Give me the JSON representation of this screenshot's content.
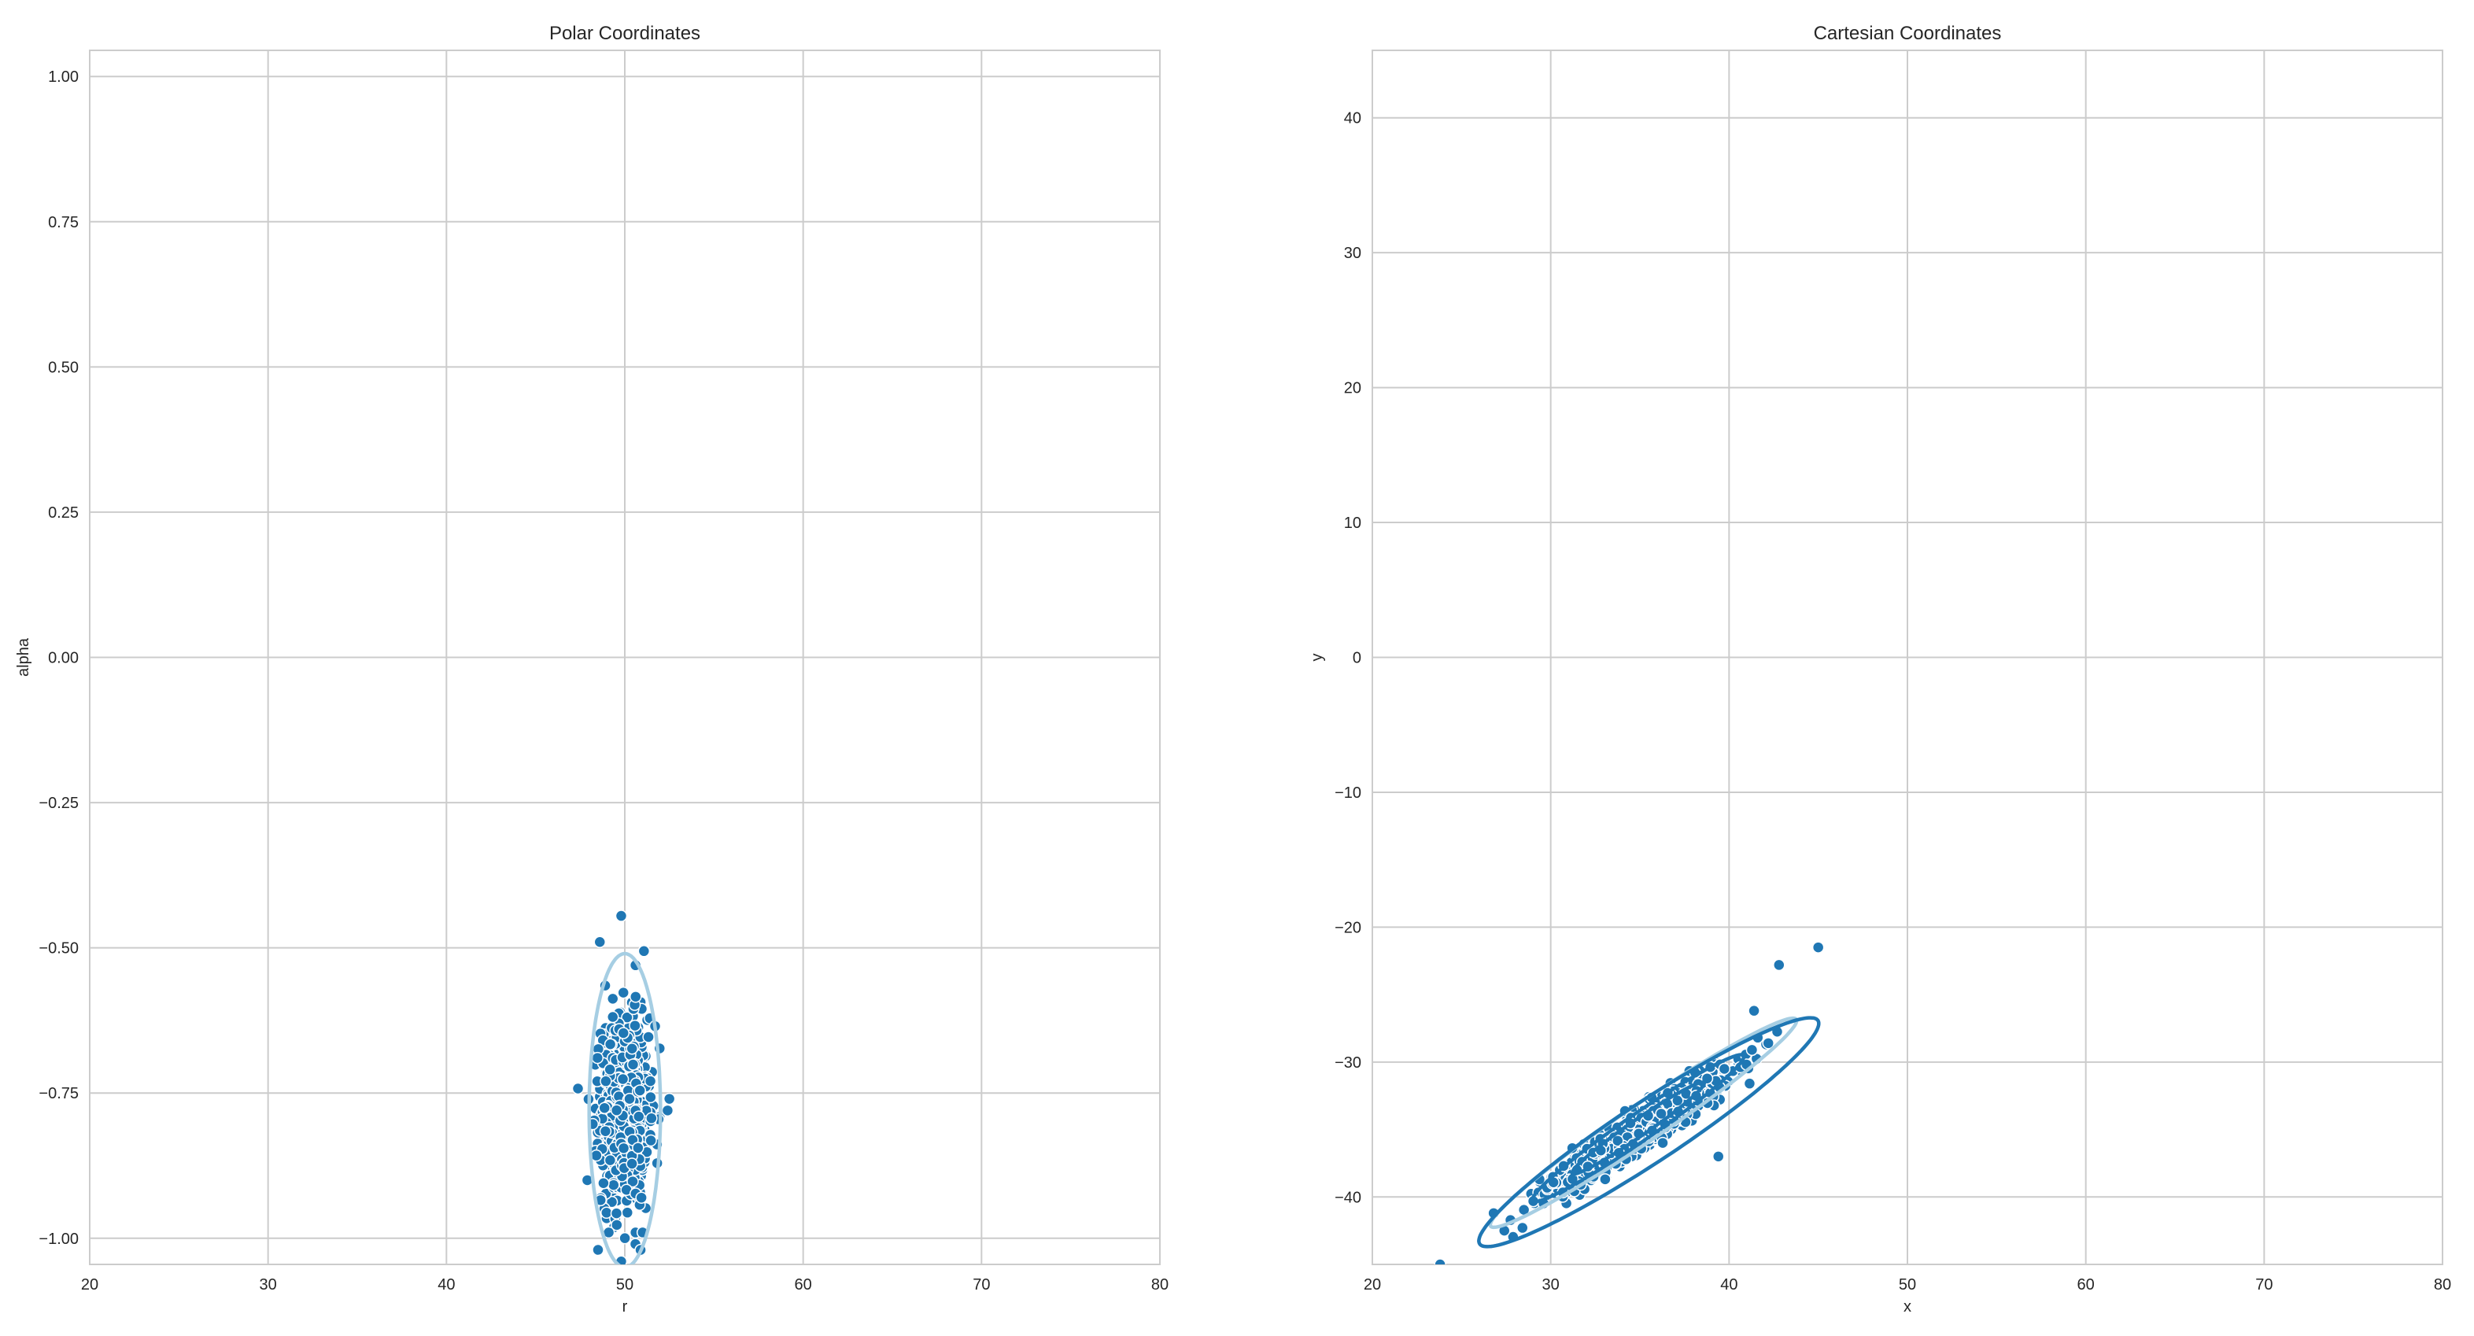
{
  "chart_data": [
    {
      "type": "scatter",
      "title": "Polar Coordinates",
      "xlabel": "r",
      "ylabel": "alpha",
      "xlim": [
        20,
        80
      ],
      "ylim": [
        -1.045,
        1.045
      ],
      "xticks": [
        20,
        30,
        40,
        50,
        60,
        70,
        80
      ],
      "yticks": [
        -1.0,
        -0.75,
        -0.5,
        -0.25,
        0.0,
        0.25,
        0.5,
        0.75,
        1.0
      ],
      "ytick_labels": [
        "−1.00",
        "−0.75",
        "−0.50",
        "−0.25",
        "0.00",
        "0.25",
        "0.50",
        "0.75",
        "1.00"
      ],
      "xtick_labels": [
        "20",
        "30",
        "40",
        "50",
        "60",
        "70",
        "80"
      ],
      "grid": true,
      "point_color": "#1f77b4",
      "ellipse_colors": [
        "#a6cee3"
      ],
      "distribution": {
        "center": [
          50.0,
          -0.78
        ],
        "std": [
          0.65,
          0.08
        ],
        "n": 1000
      },
      "outliers": [
        [
          49.8,
          -0.445
        ],
        [
          48.6,
          -0.49
        ],
        [
          50.6,
          -0.53
        ],
        [
          48.9,
          -0.565
        ],
        [
          51.7,
          -0.635
        ],
        [
          52.5,
          -0.76
        ],
        [
          52.4,
          -0.78
        ],
        [
          47.9,
          -0.9
        ],
        [
          49.1,
          -0.99
        ],
        [
          51.0,
          -0.99
        ],
        [
          48.5,
          -1.02
        ],
        [
          49.8,
          -1.04
        ]
      ],
      "ellipses": [
        {
          "center": [
            50.0,
            -0.78
          ],
          "rx": 2.0,
          "ry": 0.27,
          "angle": 0
        }
      ]
    },
    {
      "type": "scatter",
      "title": "Cartesian Coordinates",
      "xlabel": "x",
      "ylabel": "y",
      "xlim": [
        20,
        80
      ],
      "ylim": [
        -45,
        45
      ],
      "xticks": [
        20,
        30,
        40,
        50,
        60,
        70,
        80
      ],
      "yticks": [
        -40,
        -30,
        -20,
        -10,
        0,
        10,
        20,
        30,
        40
      ],
      "ytick_labels": [
        "−40",
        "−30",
        "−20",
        "−10",
        "0",
        "10",
        "20",
        "30",
        "40"
      ],
      "xtick_labels": [
        "20",
        "30",
        "40",
        "50",
        "60",
        "70",
        "80"
      ],
      "grid": true,
      "point_color": "#1f77b4",
      "ellipse_colors": [
        "#a6cee3",
        "#1f77b4"
      ],
      "distribution": {
        "center": [
          35.0,
          -35.0
        ],
        "major_std": 3.3,
        "minor_std": 0.55,
        "angle_deg": 42,
        "n": 1000
      },
      "outliers": [
        [
          45.0,
          -21.5
        ],
        [
          42.8,
          -22.8
        ],
        [
          41.4,
          -26.2
        ],
        [
          23.8,
          -45.0
        ],
        [
          26.8,
          -41.2
        ],
        [
          27.4,
          -42.5
        ],
        [
          39.4,
          -37.0
        ],
        [
          42.2,
          -28.6
        ]
      ],
      "ellipses": [
        {
          "center": [
            35.2,
            -34.5
          ],
          "rx": 11.5,
          "ry": 1.25,
          "angle": 42,
          "color": "#a6cee3"
        },
        {
          "center": [
            35.5,
            -35.2
          ],
          "rx": 12.6,
          "ry": 2.0,
          "angle": 41.5,
          "color": "#1f77b4"
        },
        {
          "center": [
            34.9,
            -34.9
          ],
          "rx": 8.0,
          "ry": 0.9,
          "angle": 42.5,
          "color": "#1f77b4"
        },
        {
          "center": [
            34.9,
            -34.9
          ],
          "rx": 5.0,
          "ry": 0.55,
          "angle": 42.5,
          "color": "#1f77b4"
        }
      ]
    }
  ]
}
